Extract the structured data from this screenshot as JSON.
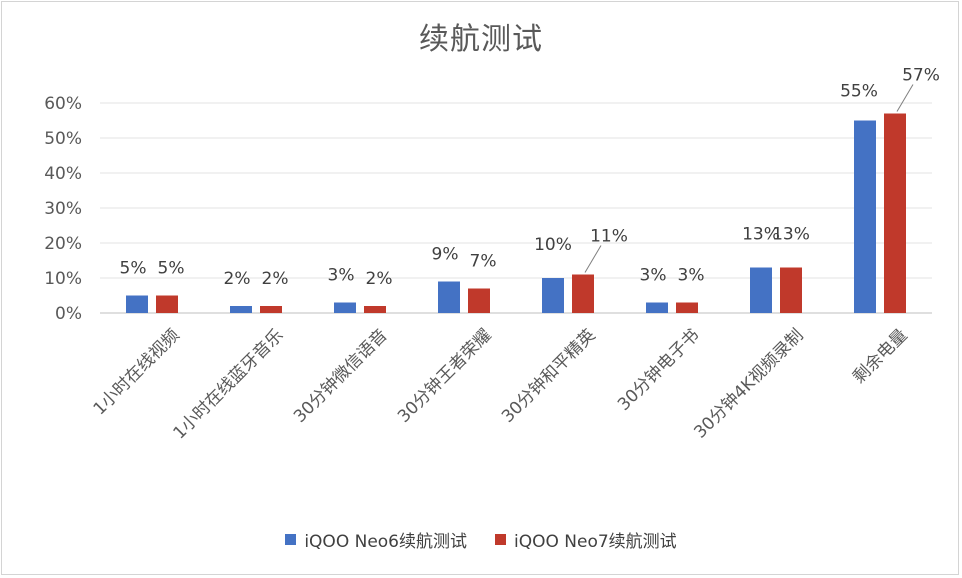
{
  "chart_data": {
    "type": "bar",
    "title": "续航测试",
    "categories": [
      "1小时在线视频",
      "1小时在线蓝牙音乐",
      "30分钟微信语音",
      "30分钟王者荣耀",
      "30分钟和平精英",
      "30分钟电子书",
      "30分钟4K视频录制",
      "剩余电量"
    ],
    "series": [
      {
        "name": "iQOO Neo6续航测试",
        "color": "#4472c4",
        "values": [
          5,
          2,
          3,
          9,
          10,
          3,
          13,
          55
        ]
      },
      {
        "name": "iQOO Neo7续航测试",
        "color": "#c0392b",
        "values": [
          5,
          2,
          2,
          7,
          11,
          3,
          13,
          57
        ]
      }
    ],
    "labels": [
      [
        "5%",
        "2%",
        "3%",
        "9%",
        "10%",
        "3%",
        "13%",
        "55%"
      ],
      [
        "5%",
        "2%",
        "2%",
        "7%",
        "11%",
        "3%",
        "13%",
        "57%"
      ]
    ],
    "yticks": [
      "0%",
      "10%",
      "20%",
      "30%",
      "40%",
      "50%",
      "60%"
    ],
    "ylim": [
      0,
      60
    ],
    "grid": true,
    "legend": "bottom"
  }
}
